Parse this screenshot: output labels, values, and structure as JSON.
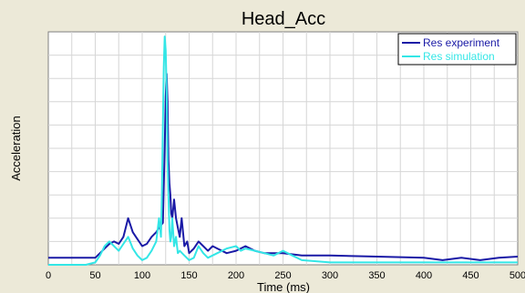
{
  "chart_data": {
    "type": "line",
    "title": "Head_Acc",
    "xlabel": "Time (ms)",
    "ylabel": "Acceleration",
    "xlim": [
      0,
      500
    ],
    "ylim": [
      0,
      1
    ],
    "xticks": [
      "0",
      "50",
      "100",
      "150",
      "200",
      "250",
      "300",
      "350",
      "400",
      "450",
      "500"
    ],
    "grid": true,
    "legend_position": "top-right",
    "series": [
      {
        "name": "Res experiment",
        "color": "#1a1aa6",
        "x": [
          0,
          20,
          40,
          50,
          55,
          60,
          65,
          70,
          75,
          80,
          85,
          90,
          95,
          100,
          105,
          110,
          115,
          118,
          120,
          122,
          124,
          125,
          126,
          127,
          128,
          129,
          130,
          131,
          132,
          134,
          136,
          138,
          140,
          142,
          145,
          148,
          150,
          155,
          160,
          165,
          170,
          175,
          180,
          190,
          200,
          210,
          220,
          230,
          250,
          270,
          300,
          350,
          400,
          420,
          440,
          460,
          480,
          500
        ],
        "y": [
          0.03,
          0.03,
          0.03,
          0.03,
          0.05,
          0.07,
          0.09,
          0.1,
          0.09,
          0.12,
          0.2,
          0.14,
          0.11,
          0.08,
          0.09,
          0.12,
          0.14,
          0.16,
          0.17,
          0.18,
          0.5,
          0.72,
          0.82,
          0.7,
          0.45,
          0.35,
          0.3,
          0.22,
          0.2,
          0.28,
          0.2,
          0.16,
          0.12,
          0.2,
          0.08,
          0.1,
          0.05,
          0.07,
          0.1,
          0.08,
          0.06,
          0.08,
          0.07,
          0.05,
          0.06,
          0.08,
          0.06,
          0.05,
          0.05,
          0.04,
          0.04,
          0.035,
          0.03,
          0.02,
          0.03,
          0.02,
          0.03,
          0.035
        ]
      },
      {
        "name": "Res simulation",
        "color": "#33e6e6",
        "x": [
          0,
          20,
          40,
          50,
          55,
          60,
          65,
          70,
          75,
          80,
          85,
          90,
          95,
          100,
          105,
          110,
          115,
          118,
          120,
          121,
          122,
          123,
          124,
          125,
          126,
          127,
          128,
          129,
          130,
          131,
          132,
          134,
          136,
          138,
          140,
          145,
          150,
          155,
          160,
          165,
          170,
          180,
          190,
          200,
          205,
          210,
          220,
          230,
          240,
          250,
          260,
          270,
          300,
          350,
          400,
          450,
          500
        ],
        "y": [
          0.0,
          0.0,
          0.0,
          0.01,
          0.04,
          0.08,
          0.1,
          0.08,
          0.06,
          0.09,
          0.12,
          0.07,
          0.04,
          0.02,
          0.03,
          0.06,
          0.1,
          0.2,
          0.12,
          0.3,
          0.6,
          0.85,
          0.98,
          0.92,
          0.75,
          0.45,
          0.3,
          0.15,
          0.1,
          0.12,
          0.2,
          0.08,
          0.12,
          0.05,
          0.06,
          0.04,
          0.02,
          0.03,
          0.08,
          0.05,
          0.03,
          0.05,
          0.07,
          0.08,
          0.06,
          0.07,
          0.06,
          0.05,
          0.04,
          0.06,
          0.04,
          0.02,
          0.01,
          0.01,
          0.01,
          0.01,
          0.01
        ]
      }
    ]
  }
}
